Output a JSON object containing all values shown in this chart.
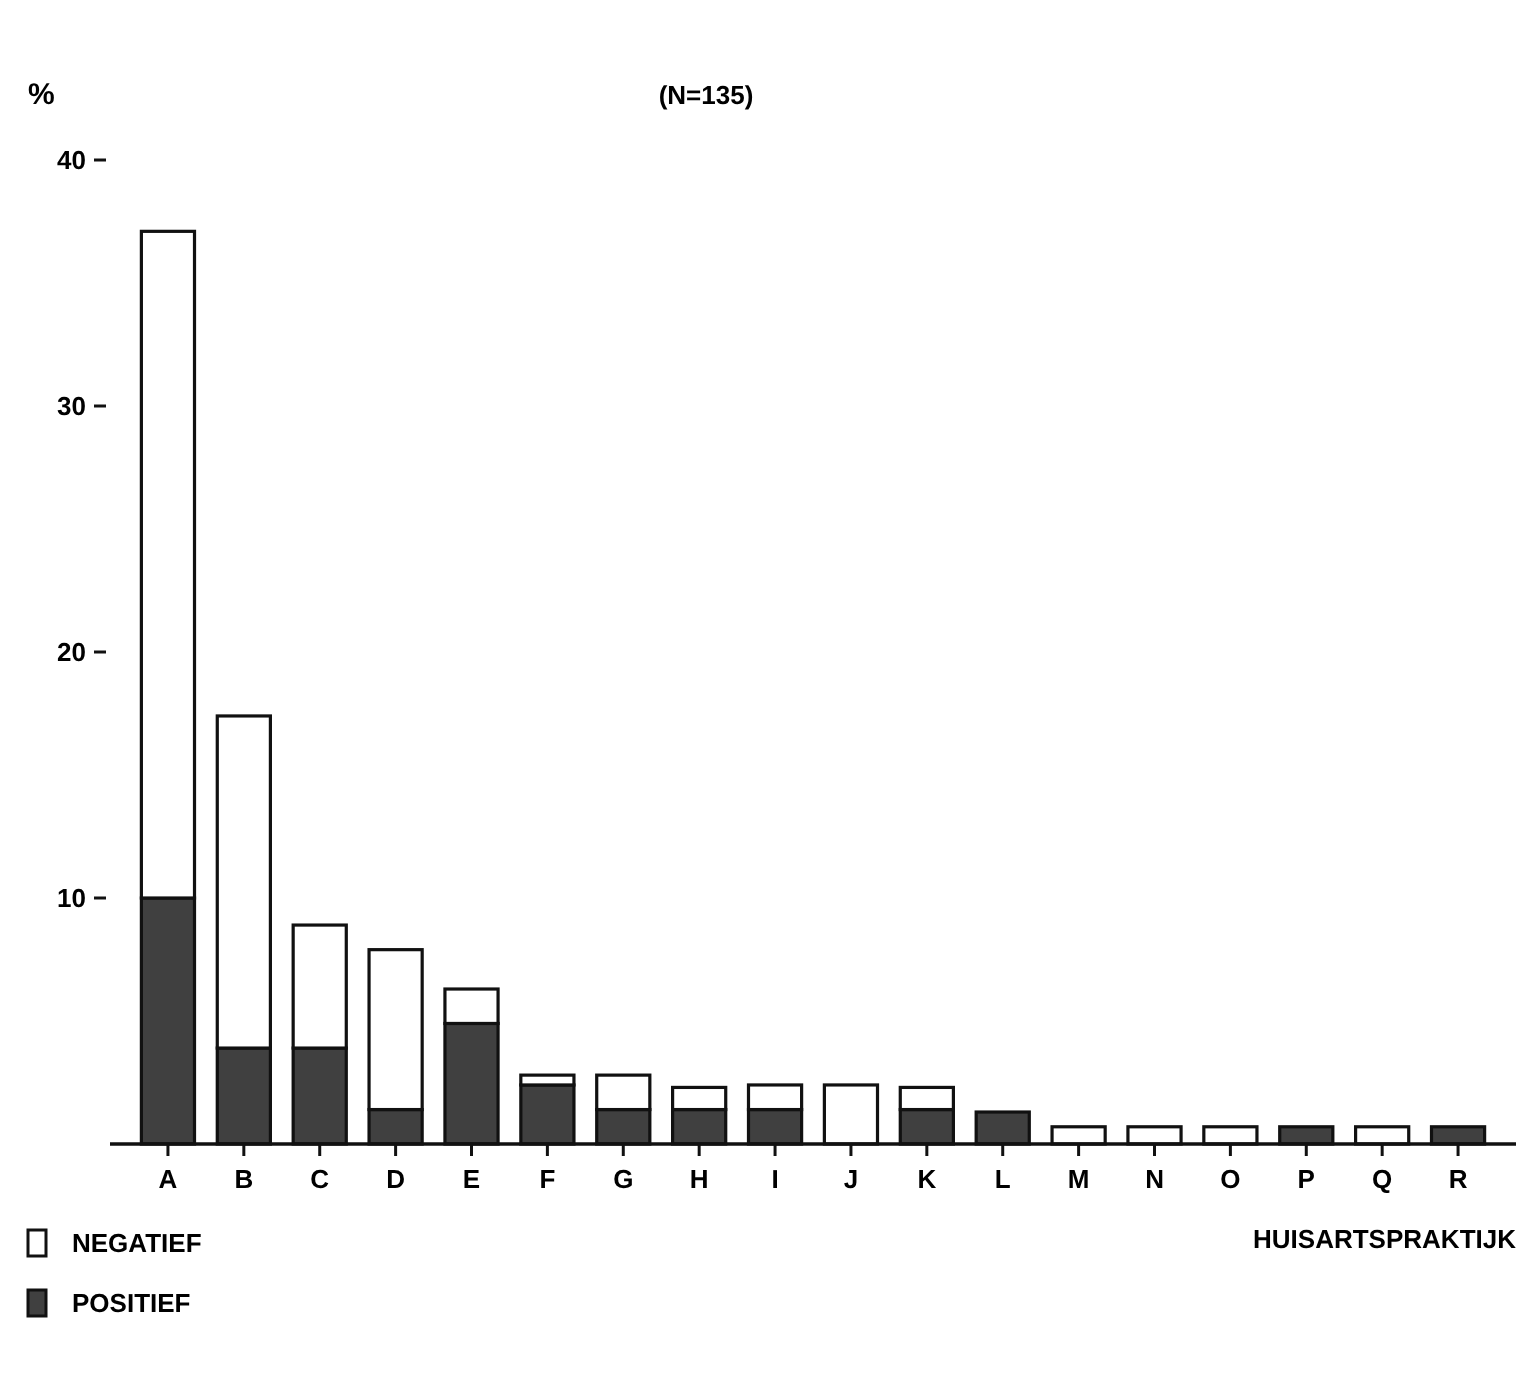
{
  "chart_data": {
    "type": "bar",
    "title": "(N=135)",
    "ylabel": "%",
    "xlabel": "HUISARTSPRAKTIJK",
    "categories": [
      "A",
      "B",
      "C",
      "D",
      "E",
      "F",
      "G",
      "H",
      "I",
      "J",
      "K",
      "L",
      "M",
      "N",
      "O",
      "P",
      "Q",
      "R"
    ],
    "stacked": true,
    "ylim": [
      0,
      40
    ],
    "yticks": [
      10,
      20,
      30,
      40
    ],
    "legend": "bottom left",
    "grid": false,
    "series": [
      {
        "name": "POSITIEF",
        "color": "#404040",
        "values": [
          10.0,
          3.9,
          3.9,
          1.4,
          4.9,
          2.4,
          1.4,
          1.4,
          1.4,
          0,
          1.4,
          1.3,
          0,
          0,
          0,
          0.7,
          0,
          0.7
        ]
      },
      {
        "name": "NEGATIEF",
        "color": "#ffffff",
        "values": [
          27.1,
          13.5,
          5.0,
          6.5,
          1.4,
          0.4,
          1.4,
          0.9,
          1.0,
          2.4,
          0.9,
          0,
          0.7,
          0.7,
          0.7,
          0,
          0.7,
          0
        ]
      }
    ]
  }
}
